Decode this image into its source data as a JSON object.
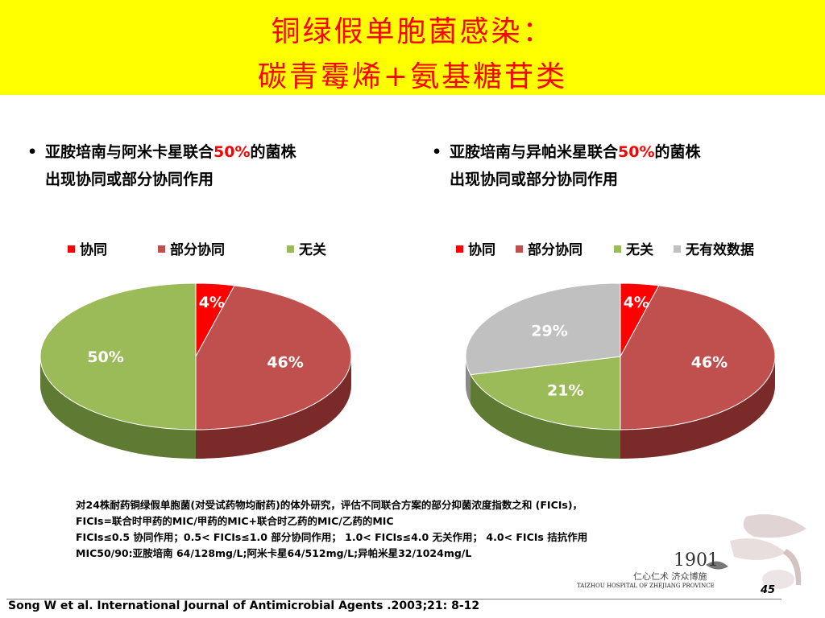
{
  "slide": {
    "title_line1": "铜绿假单胞菌感染：",
    "title_line2": "碳青霉烯+氨基糖苷类",
    "title_color": "#ff0000",
    "title_bg": "#ffff00"
  },
  "left": {
    "bullet_pre": "亚胺培南与阿米卡星联合",
    "bullet_hl": "50%",
    "bullet_post": "的菌株",
    "bullet_line2": "出现协同或部分协同作用",
    "legend": [
      {
        "label": "协同",
        "color": "#ff0000"
      },
      {
        "label": "部分协同",
        "color": "#c0504d"
      },
      {
        "label": "无关",
        "color": "#9bbb59"
      }
    ]
  },
  "right": {
    "bullet_pre": "亚胺培南与异帕米星联合",
    "bullet_hl": "50%",
    "bullet_post": "的菌株",
    "bullet_line2": "出现协同或部分协同作用",
    "legend": [
      {
        "label": "协同",
        "color": "#ff0000"
      },
      {
        "label": "部分协同",
        "color": "#c0504d"
      },
      {
        "label": "无关",
        "color": "#9bbb59"
      },
      {
        "label": "无有效数据",
        "color": "#c0c0c0"
      }
    ]
  },
  "chart_data": [
    {
      "type": "pie",
      "slices": [
        {
          "label": "协同",
          "value": 4,
          "display": "4%",
          "color": "#ff0000",
          "side": "#a00000"
        },
        {
          "label": "部分协同",
          "value": 46,
          "display": "46%",
          "color": "#c0504d",
          "side": "#7a2a28"
        },
        {
          "label": "无关",
          "value": 50,
          "display": "50%",
          "color": "#9bbb59",
          "side": "#5f7a32"
        }
      ]
    },
    {
      "type": "pie",
      "slices": [
        {
          "label": "协同",
          "value": 4,
          "display": "4%",
          "color": "#ff0000",
          "side": "#a00000"
        },
        {
          "label": "部分协同",
          "value": 46,
          "display": "46%",
          "color": "#c0504d",
          "side": "#7a2a28"
        },
        {
          "label": "无关",
          "value": 21,
          "display": "21%",
          "color": "#9bbb59",
          "side": "#5f7a32"
        },
        {
          "label": "无有效数据",
          "value": 29,
          "display": "29%",
          "color": "#c0c0c0",
          "side": "#8a8a8a"
        }
      ]
    }
  ],
  "notes": [
    "对24株耐药铜绿假单胞菌(对受试药物均耐药)的体外研究，评估不同联合方案的部分抑菌浓度指数之和 (FICIs)，",
    "FICIs=联合时甲药的MIC/甲药的MIC+联合时乙药的MIC/乙药的MIC",
    "FICIs≤0.5 协同作用；0.5< FICIs≤1.0 部分协同作用； 1.0< FICIs≤4.0 无关作用； 4.0< FICIs 拮抗作用",
    "MIC50/90:亚胺培南 64/128mg/L;阿米卡星64/512mg/L;异帕米星32/1024mg/L"
  ],
  "logo": {
    "year": "1901",
    "cn": "仁心仁术 济众博施",
    "en": "TAIZHOU HOSPITAL OF ZHEJIANG PROVINCE"
  },
  "citation": "Song W  et al. International Journal of Antimicrobial Agents .2003;21: 8-12",
  "page_number": "45"
}
